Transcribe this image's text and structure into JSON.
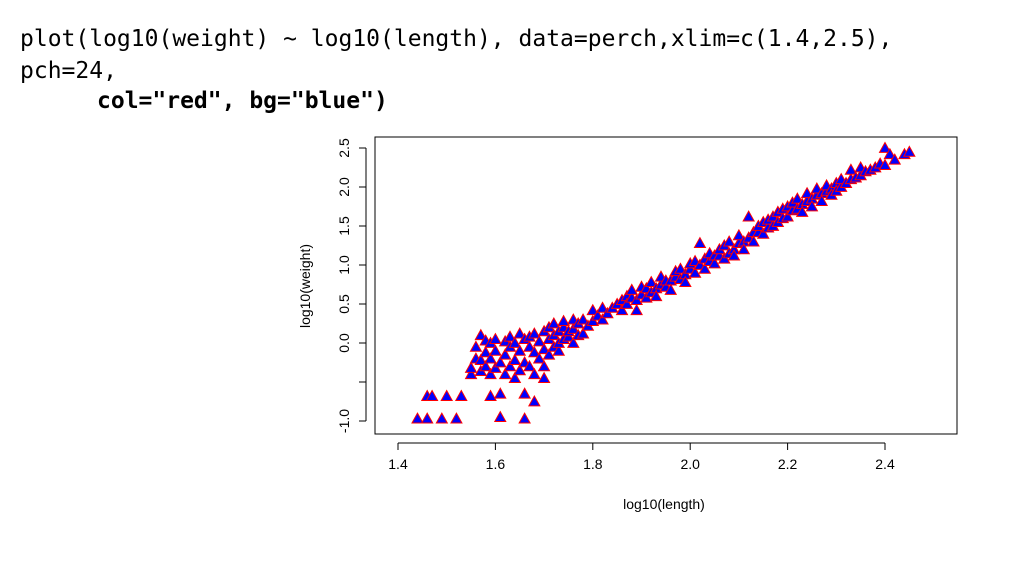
{
  "code": {
    "line1": "plot(log10(weight) ~ log10(length), data=perch,xlim=c(1.4,2.5),",
    "line2": "pch=24,",
    "line3": "col=\"red\", bg=\"blue\")"
  },
  "chart_data": {
    "type": "scatter",
    "xlabel": "log10(length)",
    "ylabel": "log10(weight)",
    "xlim": [
      1.4,
      2.5
    ],
    "ylim": [
      -1.1,
      2.55
    ],
    "x_ticks": [
      "1.4",
      "1.6",
      "1.8",
      "2.0",
      "2.2",
      "2.4"
    ],
    "y_ticks": [
      "-1.0",
      "",
      "0.0",
      "0.5",
      "1.0",
      "1.5",
      "2.0",
      "2.5"
    ],
    "y_tick_values": [
      -1.0,
      -0.5,
      0.0,
      0.5,
      1.0,
      1.5,
      2.0,
      2.5
    ],
    "grid": false,
    "marker": "triangle",
    "marker_border_color": "#ff0000",
    "marker_fill_color": "#0000ff",
    "points": [
      [
        1.44,
        -0.97
      ],
      [
        1.46,
        -0.97
      ],
      [
        1.46,
        -0.68
      ],
      [
        1.47,
        -0.68
      ],
      [
        1.49,
        -0.97
      ],
      [
        1.5,
        -0.68
      ],
      [
        1.52,
        -0.97
      ],
      [
        1.53,
        -0.68
      ],
      [
        1.55,
        -0.4
      ],
      [
        1.55,
        -0.32
      ],
      [
        1.56,
        -0.2
      ],
      [
        1.56,
        -0.05
      ],
      [
        1.57,
        -0.36
      ],
      [
        1.57,
        -0.22
      ],
      [
        1.57,
        0.1
      ],
      [
        1.58,
        -0.3
      ],
      [
        1.58,
        -0.12
      ],
      [
        1.58,
        0.03
      ],
      [
        1.59,
        -0.4
      ],
      [
        1.59,
        -0.2
      ],
      [
        1.59,
        -0.68
      ],
      [
        1.59,
        0.0
      ],
      [
        1.6,
        -0.32
      ],
      [
        1.6,
        -0.1
      ],
      [
        1.6,
        0.05
      ],
      [
        1.61,
        -0.25
      ],
      [
        1.61,
        -0.65
      ],
      [
        1.61,
        -0.95
      ],
      [
        1.62,
        -0.4
      ],
      [
        1.62,
        -0.15
      ],
      [
        1.62,
        0.02
      ],
      [
        1.63,
        -0.3
      ],
      [
        1.63,
        -0.05
      ],
      [
        1.63,
        0.08
      ],
      [
        1.64,
        -0.22
      ],
      [
        1.64,
        -0.45
      ],
      [
        1.64,
        0.0
      ],
      [
        1.65,
        -0.35
      ],
      [
        1.65,
        -0.1
      ],
      [
        1.65,
        0.12
      ],
      [
        1.66,
        -0.25
      ],
      [
        1.66,
        -0.65
      ],
      [
        1.66,
        0.05
      ],
      [
        1.66,
        -0.97
      ],
      [
        1.67,
        -0.3
      ],
      [
        1.67,
        -0.05
      ],
      [
        1.67,
        0.08
      ],
      [
        1.68,
        -0.4
      ],
      [
        1.68,
        -0.12
      ],
      [
        1.68,
        0.12
      ],
      [
        1.68,
        -0.75
      ],
      [
        1.69,
        -0.2
      ],
      [
        1.69,
        0.02
      ],
      [
        1.7,
        -0.3
      ],
      [
        1.7,
        -0.08
      ],
      [
        1.7,
        0.15
      ],
      [
        1.7,
        -0.45
      ],
      [
        1.71,
        -0.15
      ],
      [
        1.71,
        0.05
      ],
      [
        1.71,
        0.2
      ],
      [
        1.72,
        -0.05
      ],
      [
        1.72,
        0.1
      ],
      [
        1.72,
        0.25
      ],
      [
        1.73,
        -0.1
      ],
      [
        1.73,
        0.0
      ],
      [
        1.73,
        0.15
      ],
      [
        1.74,
        0.05
      ],
      [
        1.74,
        0.2
      ],
      [
        1.74,
        0.28
      ],
      [
        1.75,
        0.08
      ],
      [
        1.75,
        0.15
      ],
      [
        1.76,
        0.0
      ],
      [
        1.76,
        0.18
      ],
      [
        1.76,
        0.3
      ],
      [
        1.77,
        0.1
      ],
      [
        1.77,
        0.25
      ],
      [
        1.78,
        0.12
      ],
      [
        1.78,
        0.3
      ],
      [
        1.79,
        0.22
      ],
      [
        1.8,
        0.28
      ],
      [
        1.8,
        0.42
      ],
      [
        1.81,
        0.35
      ],
      [
        1.82,
        0.3
      ],
      [
        1.82,
        0.45
      ],
      [
        1.83,
        0.38
      ],
      [
        1.84,
        0.45
      ],
      [
        1.85,
        0.5
      ],
      [
        1.86,
        0.55
      ],
      [
        1.86,
        0.42
      ],
      [
        1.87,
        0.6
      ],
      [
        1.87,
        0.5
      ],
      [
        1.88,
        0.58
      ],
      [
        1.88,
        0.68
      ],
      [
        1.89,
        0.55
      ],
      [
        1.89,
        0.42
      ],
      [
        1.9,
        0.62
      ],
      [
        1.9,
        0.72
      ],
      [
        1.91,
        0.58
      ],
      [
        1.91,
        0.7
      ],
      [
        1.92,
        0.65
      ],
      [
        1.92,
        0.78
      ],
      [
        1.93,
        0.7
      ],
      [
        1.93,
        0.6
      ],
      [
        1.94,
        0.75
      ],
      [
        1.94,
        0.85
      ],
      [
        1.95,
        0.72
      ],
      [
        1.95,
        0.8
      ],
      [
        1.96,
        0.8
      ],
      [
        1.96,
        0.68
      ],
      [
        1.97,
        0.85
      ],
      [
        1.97,
        0.92
      ],
      [
        1.98,
        0.82
      ],
      [
        1.98,
        0.95
      ],
      [
        1.99,
        0.88
      ],
      [
        1.99,
        0.78
      ],
      [
        2.0,
        0.95
      ],
      [
        2.0,
        1.02
      ],
      [
        2.01,
        0.9
      ],
      [
        2.01,
        1.05
      ],
      [
        2.02,
        1.0
      ],
      [
        2.02,
        1.28
      ],
      [
        2.03,
        0.95
      ],
      [
        2.03,
        1.08
      ],
      [
        2.04,
        1.05
      ],
      [
        2.04,
        1.15
      ],
      [
        2.05,
        1.02
      ],
      [
        2.05,
        1.12
      ],
      [
        2.06,
        1.12
      ],
      [
        2.06,
        1.2
      ],
      [
        2.07,
        1.08
      ],
      [
        2.07,
        1.25
      ],
      [
        2.08,
        1.15
      ],
      [
        2.08,
        1.3
      ],
      [
        2.09,
        1.2
      ],
      [
        2.09,
        1.12
      ],
      [
        2.1,
        1.28
      ],
      [
        2.1,
        1.38
      ],
      [
        2.11,
        1.3
      ],
      [
        2.11,
        1.2
      ],
      [
        2.12,
        1.35
      ],
      [
        2.12,
        1.62
      ],
      [
        2.13,
        1.3
      ],
      [
        2.13,
        1.42
      ],
      [
        2.14,
        1.42
      ],
      [
        2.14,
        1.5
      ],
      [
        2.15,
        1.4
      ],
      [
        2.15,
        1.55
      ],
      [
        2.16,
        1.48
      ],
      [
        2.16,
        1.58
      ],
      [
        2.17,
        1.5
      ],
      [
        2.17,
        1.62
      ],
      [
        2.18,
        1.55
      ],
      [
        2.18,
        1.68
      ],
      [
        2.19,
        1.6
      ],
      [
        2.19,
        1.72
      ],
      [
        2.2,
        1.62
      ],
      [
        2.2,
        1.75
      ],
      [
        2.21,
        1.7
      ],
      [
        2.21,
        1.8
      ],
      [
        2.22,
        1.72
      ],
      [
        2.22,
        1.85
      ],
      [
        2.23,
        1.78
      ],
      [
        2.23,
        1.68
      ],
      [
        2.24,
        1.82
      ],
      [
        2.24,
        1.92
      ],
      [
        2.25,
        1.85
      ],
      [
        2.25,
        1.75
      ],
      [
        2.26,
        1.9
      ],
      [
        2.26,
        1.98
      ],
      [
        2.27,
        1.92
      ],
      [
        2.27,
        1.82
      ],
      [
        2.28,
        1.95
      ],
      [
        2.28,
        2.02
      ],
      [
        2.29,
        1.98
      ],
      [
        2.29,
        1.9
      ],
      [
        2.3,
        2.05
      ],
      [
        2.3,
        1.95
      ],
      [
        2.31,
        2.0
      ],
      [
        2.31,
        2.1
      ],
      [
        2.32,
        2.05
      ],
      [
        2.33,
        2.1
      ],
      [
        2.33,
        2.22
      ],
      [
        2.34,
        2.12
      ],
      [
        2.35,
        2.15
      ],
      [
        2.35,
        2.25
      ],
      [
        2.36,
        2.2
      ],
      [
        2.37,
        2.22
      ],
      [
        2.38,
        2.25
      ],
      [
        2.39,
        2.3
      ],
      [
        2.4,
        2.28
      ],
      [
        2.4,
        2.5
      ],
      [
        2.41,
        2.42
      ],
      [
        2.42,
        2.35
      ],
      [
        2.44,
        2.42
      ],
      [
        2.45,
        2.45
      ]
    ]
  }
}
